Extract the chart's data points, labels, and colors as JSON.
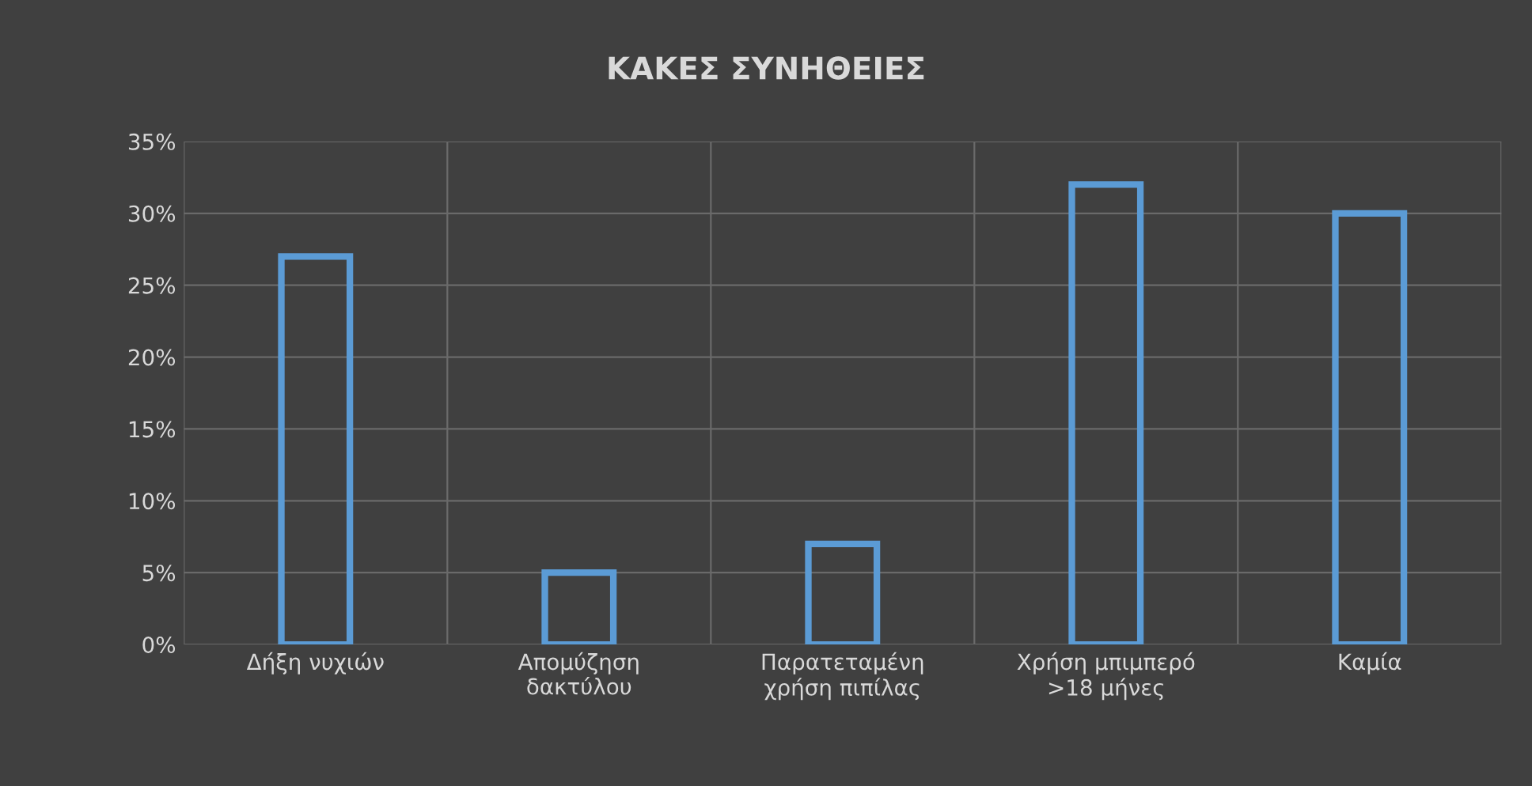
{
  "chart_data": {
    "type": "bar",
    "title": "ΚΑΚΕΣ ΣΥΝΗΘΕΙΕΣ",
    "categories": [
      "Δήξη νυχιών",
      "Απομύζηση\nδακτύλου",
      "Παρατεταμένη\nχρήση πιπίλας",
      "Χρήση μπιμπερό\n>18 μήνες",
      "Καμία"
    ],
    "values": [
      27,
      5,
      7,
      32,
      30
    ],
    "color": "#5b9bd5",
    "ylim": [
      0,
      35
    ],
    "yticks": [
      {
        "value": 0,
        "label": "0%"
      },
      {
        "value": 5,
        "label": "5%"
      },
      {
        "value": 10,
        "label": "10%"
      },
      {
        "value": 15,
        "label": "15%"
      },
      {
        "value": 20,
        "label": "20%"
      },
      {
        "value": 25,
        "label": "25%"
      },
      {
        "value": 30,
        "label": "30%"
      },
      {
        "value": 35,
        "label": "35%"
      }
    ],
    "grid": true,
    "legend": false
  }
}
